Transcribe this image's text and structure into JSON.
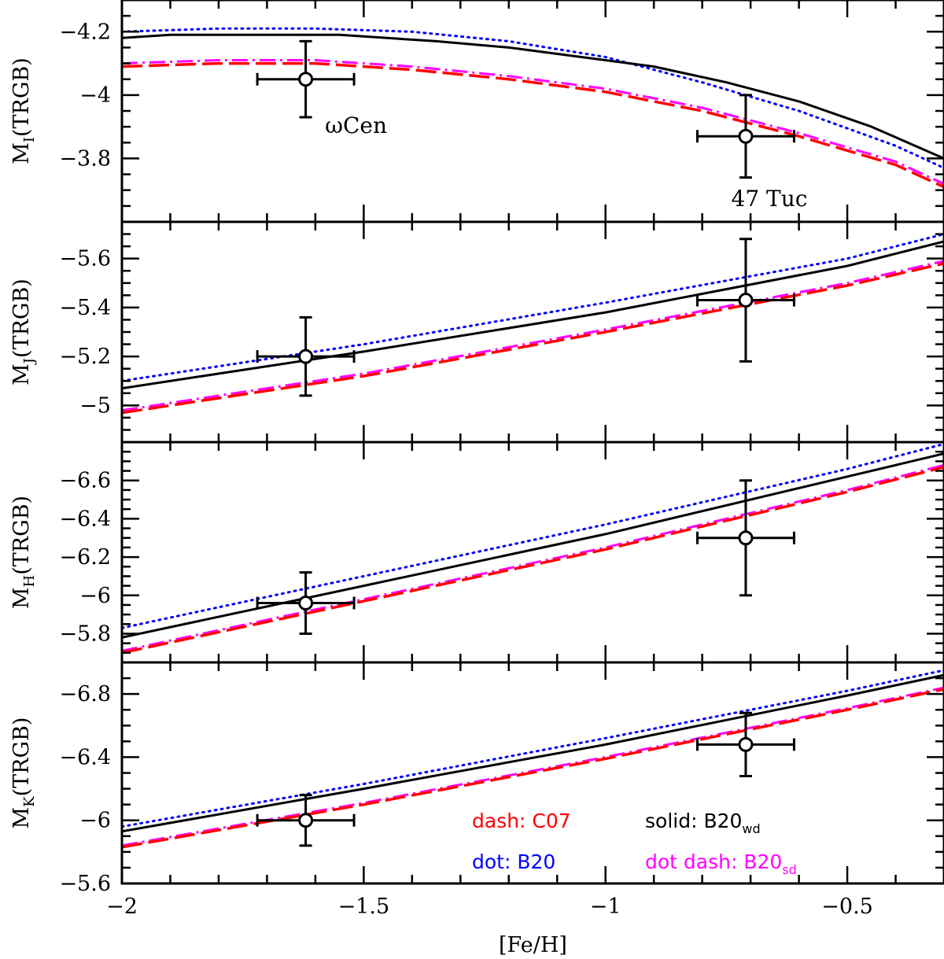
{
  "chart_data": {
    "type": "line",
    "xlabel": "[Fe/H]",
    "xlim": [
      -2.0,
      -0.3
    ],
    "x_ticks": [
      -2,
      -1.5,
      -1,
      -0.5
    ],
    "x_tick_labels": [
      "−2",
      "−1.5",
      "−1",
      "−0.5"
    ],
    "colors": {
      "C07": "#ff0000",
      "B20": "#0000ff",
      "B20wd": "#000000",
      "B20sd": "#ff00ff"
    },
    "legend": [
      {
        "key": "C07",
        "style": "dash",
        "text": "dash: C07",
        "sub": ""
      },
      {
        "key": "B20",
        "style": "dot",
        "text": "dot: B20",
        "sub": ""
      },
      {
        "key": "B20wd",
        "style": "solid",
        "text": "solid: B20",
        "sub": "wd"
      },
      {
        "key": "B20sd",
        "style": "dotdash",
        "text": "dot dash: B20",
        "sub": "sd"
      }
    ],
    "legend_placement": "bottom-right of bottom panel",
    "panels": [
      {
        "id": "I",
        "ylabel_main": "M",
        "ylabel_sub": "I",
        "ylabel_tail": "(TRGB)",
        "ylim": [
          -3.6,
          -4.3
        ],
        "y_ticks": [
          -4.2,
          -4.0,
          -3.8
        ],
        "y_tick_labels": [
          "−4.2",
          "−4",
          "−3.8"
        ],
        "annotations": [
          {
            "text": "ωCen",
            "x": -1.58,
            "y": -3.88
          },
          {
            "text": "47 Tuc",
            "x": -0.74,
            "y": -3.65
          }
        ],
        "points": [
          {
            "x": -1.62,
            "xerr": 0.1,
            "y": -4.05,
            "yerr": 0.12
          },
          {
            "x": -0.71,
            "xerr": 0.1,
            "y": -3.87,
            "yerr": 0.13
          }
        ],
        "series": [
          {
            "key": "B20",
            "x": [
              -2.0,
              -1.8,
              -1.6,
              -1.4,
              -1.2,
              -1.0,
              -0.8,
              -0.6,
              -0.4,
              -0.3
            ],
            "y": [
              -4.2,
              -4.21,
              -4.21,
              -4.2,
              -4.17,
              -4.12,
              -4.04,
              -3.95,
              -3.84,
              -3.77
            ]
          },
          {
            "key": "B20wd",
            "x": [
              -2.0,
              -1.9,
              -1.75,
              -1.55,
              -1.35,
              -1.2,
              -1.05,
              -0.9,
              -0.75,
              -0.6,
              -0.45,
              -0.3
            ],
            "y": [
              -4.18,
              -4.19,
              -4.19,
              -4.19,
              -4.17,
              -4.15,
              -4.12,
              -4.09,
              -4.04,
              -3.98,
              -3.9,
              -3.8
            ]
          },
          {
            "key": "B20sd",
            "x": [
              -2.0,
              -1.8,
              -1.6,
              -1.4,
              -1.2,
              -1.0,
              -0.8,
              -0.6,
              -0.4,
              -0.3
            ],
            "y": [
              -4.1,
              -4.11,
              -4.11,
              -4.09,
              -4.06,
              -4.02,
              -3.96,
              -3.88,
              -3.79,
              -3.72
            ]
          },
          {
            "key": "C07",
            "x": [
              -2.0,
              -1.8,
              -1.6,
              -1.4,
              -1.2,
              -1.0,
              -0.8,
              -0.6,
              -0.4,
              -0.3
            ],
            "y": [
              -4.09,
              -4.1,
              -4.1,
              -4.08,
              -4.05,
              -4.01,
              -3.95,
              -3.87,
              -3.78,
              -3.71
            ]
          }
        ]
      },
      {
        "id": "J",
        "ylabel_main": "M",
        "ylabel_sub": "J",
        "ylabel_tail": "(TRGB)",
        "ylim": [
          -4.85,
          -5.75
        ],
        "y_ticks": [
          -5.6,
          -5.4,
          -5.2,
          -5.0
        ],
        "y_tick_labels": [
          "−5.6",
          "−5.4",
          "−5.2",
          "−5"
        ],
        "annotations": [],
        "points": [
          {
            "x": -1.62,
            "xerr": 0.1,
            "y": -5.2,
            "yerr": 0.16
          },
          {
            "x": -0.71,
            "xerr": 0.1,
            "y": -5.43,
            "yerr": 0.25
          }
        ],
        "series": [
          {
            "key": "B20",
            "x": [
              -2.0,
              -1.5,
              -1.0,
              -0.5,
              -0.3
            ],
            "y": [
              -5.1,
              -5.25,
              -5.42,
              -5.6,
              -5.7
            ]
          },
          {
            "key": "B20wd",
            "x": [
              -2.0,
              -1.5,
              -1.0,
              -0.5,
              -0.3
            ],
            "y": [
              -5.07,
              -5.22,
              -5.38,
              -5.57,
              -5.67
            ]
          },
          {
            "key": "B20sd",
            "x": [
              -2.0,
              -1.5,
              -1.0,
              -0.5,
              -0.3
            ],
            "y": [
              -4.98,
              -5.13,
              -5.31,
              -5.5,
              -5.59
            ]
          },
          {
            "key": "C07",
            "x": [
              -2.0,
              -1.5,
              -1.0,
              -0.5,
              -0.3
            ],
            "y": [
              -4.97,
              -5.12,
              -5.3,
              -5.49,
              -5.58
            ]
          }
        ]
      },
      {
        "id": "H",
        "ylabel_main": "M",
        "ylabel_sub": "H",
        "ylabel_tail": "(TRGB)",
        "ylim": [
          -5.65,
          -6.8
        ],
        "y_ticks": [
          -6.6,
          -6.4,
          -6.2,
          -6.0,
          -5.8
        ],
        "y_tick_labels": [
          "−6.6",
          "−6.4",
          "−6.2",
          "−6",
          "−5.8"
        ],
        "annotations": [],
        "points": [
          {
            "x": -1.62,
            "xerr": 0.1,
            "y": -5.96,
            "yerr": 0.16
          },
          {
            "x": -0.71,
            "xerr": 0.1,
            "y": -6.3,
            "yerr": 0.3
          }
        ],
        "series": [
          {
            "key": "B20",
            "x": [
              -2.0,
              -1.5,
              -1.0,
              -0.5,
              -0.3
            ],
            "y": [
              -5.83,
              -6.1,
              -6.37,
              -6.66,
              -6.79
            ]
          },
          {
            "key": "B20wd",
            "x": [
              -2.0,
              -1.5,
              -1.0,
              -0.5,
              -0.3
            ],
            "y": [
              -5.78,
              -6.05,
              -6.32,
              -6.62,
              -6.74
            ]
          },
          {
            "key": "B20sd",
            "x": [
              -2.0,
              -1.5,
              -1.0,
              -0.5,
              -0.3
            ],
            "y": [
              -5.71,
              -5.98,
              -6.25,
              -6.55,
              -6.68
            ]
          },
          {
            "key": "C07",
            "x": [
              -2.0,
              -1.5,
              -1.0,
              -0.5,
              -0.3
            ],
            "y": [
              -5.7,
              -5.97,
              -6.24,
              -6.54,
              -6.67
            ]
          }
        ]
      },
      {
        "id": "K",
        "ylabel_main": "M",
        "ylabel_sub": "K",
        "ylabel_tail": "(TRGB)",
        "ylim": [
          -5.6,
          -7.0
        ],
        "y_ticks": [
          -6.8,
          -6.4,
          -6.0,
          -5.6
        ],
        "y_tick_labels": [
          "−6.8",
          "−6.4",
          "−6",
          "−5.6"
        ],
        "annotations": [],
        "points": [
          {
            "x": -1.62,
            "xerr": 0.1,
            "y": -6.0,
            "yerr": 0.16
          },
          {
            "x": -0.71,
            "xerr": 0.1,
            "y": -6.48,
            "yerr": 0.2
          }
        ],
        "series": [
          {
            "key": "B20",
            "x": [
              -2.0,
              -1.5,
              -1.0,
              -0.5,
              -0.3
            ],
            "y": [
              -5.96,
              -6.23,
              -6.52,
              -6.82,
              -6.95
            ]
          },
          {
            "key": "B20wd",
            "x": [
              -2.0,
              -1.5,
              -1.0,
              -0.5,
              -0.3
            ],
            "y": [
              -5.93,
              -6.2,
              -6.48,
              -6.79,
              -6.92
            ]
          },
          {
            "key": "B20sd",
            "x": [
              -2.0,
              -1.5,
              -1.0,
              -0.5,
              -0.3
            ],
            "y": [
              -5.84,
              -6.11,
              -6.4,
              -6.71,
              -6.84
            ]
          },
          {
            "key": "C07",
            "x": [
              -2.0,
              -1.5,
              -1.0,
              -0.5,
              -0.3
            ],
            "y": [
              -5.83,
              -6.1,
              -6.39,
              -6.7,
              -6.83
            ]
          }
        ]
      }
    ]
  }
}
